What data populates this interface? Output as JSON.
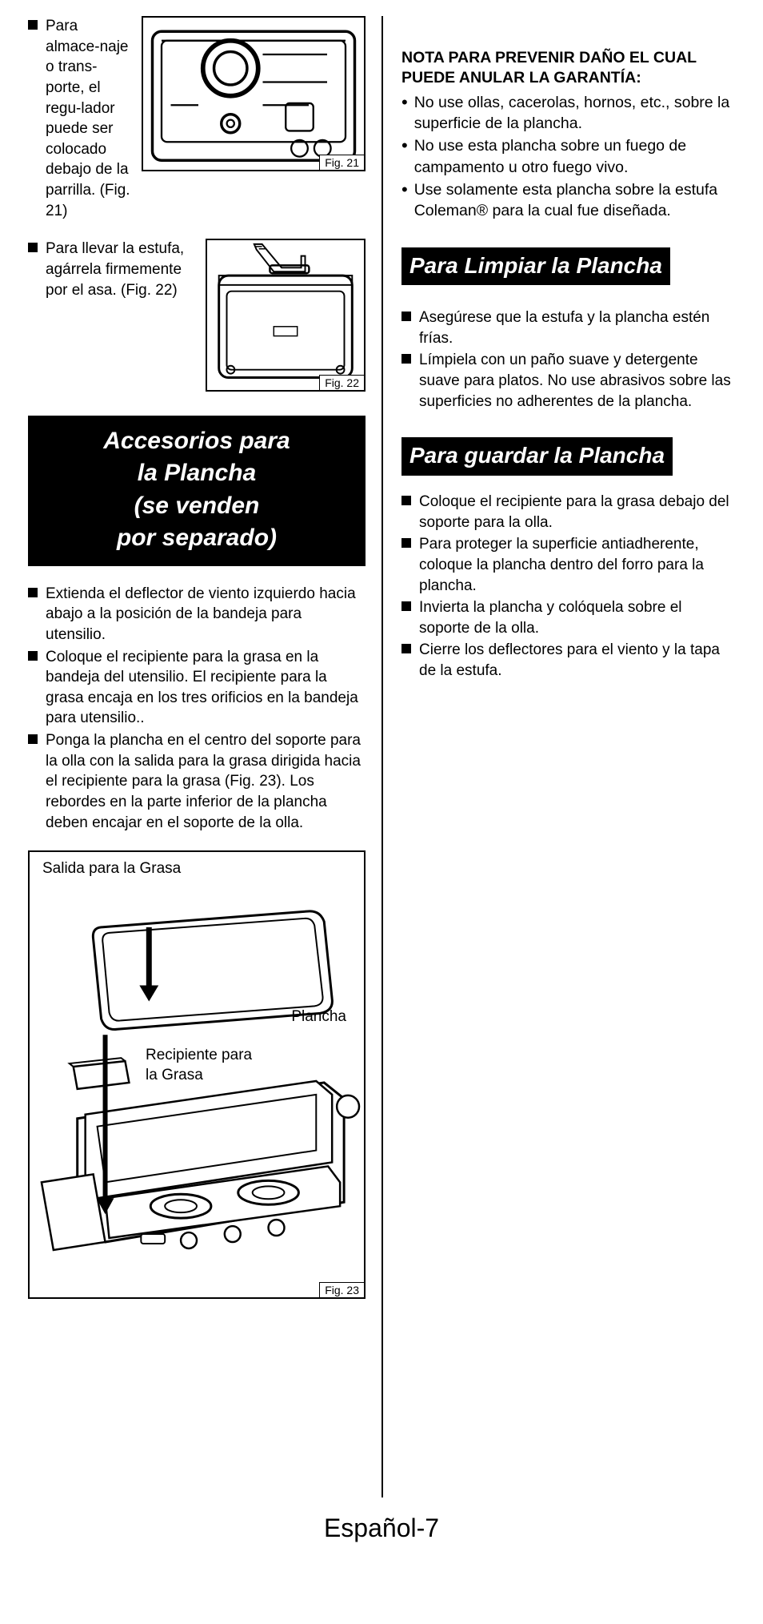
{
  "leftCol": {
    "item1_text": "Para almace-naje o trans-porte, el regu-lador puede ser colocado debajo de la parrilla. (Fig. 21)",
    "fig21_label": "Fig. 21",
    "item2_text": "Para llevar la estufa, agárrela firmemente por el asa. (Fig. 22)",
    "fig22_label": "Fig. 22",
    "heading_accessories": "Accesorios para la Plancha (se venden por separado)",
    "acc_list": [
      "Extienda el deflector de viento izquierdo hacia abajo a la posición de la bandeja para utensilio.",
      "Coloque el recipiente para la grasa en la bandeja del utensilio. El recipiente para la grasa encaja en los tres orificios en la bandeja para utensilio..",
      "Ponga la plancha en el centro del soporte para la olla con la salida para la grasa dirigida hacia el recipiente para la grasa (Fig. 23).  Los rebordes en la parte inferior de la plancha deben encajar en el soporte de la olla."
    ],
    "fig23": {
      "label_a": "Salida para la Grasa",
      "label_b": "Plancha",
      "label_c": "Recipiente para la Grasa",
      "fig_label": "Fig. 23"
    }
  },
  "rightCol": {
    "note_head": "NOTA PARA PREVENIR DAÑO EL CUAL PUEDE ANULAR LA GARANTÍA:",
    "note_bullets": [
      "No use ollas, cacerolas, hornos, etc., sobre la superficie de la plancha.",
      "No use esta plancha sobre un fuego de campamento u otro fuego vivo.",
      "Use solamente esta plancha sobre la estufa Coleman® para la cual fue diseñada."
    ],
    "heading_clean": "Para Limpiar la Plancha",
    "clean_list": [
      "Asegúrese que la estufa y la plancha estén frías.",
      "Límpiela con un paño suave y detergente suave para platos.  No use abrasivos sobre las superficies no adherentes de la plancha."
    ],
    "heading_store": "Para guardar la Plancha",
    "store_list": [
      "Coloque el recipiente para la grasa debajo del soporte para la olla.",
      "Para proteger la superficie antiadherente, coloque la plancha dentro del forro para la plancha.",
      "Invierta la plancha y colóquela sobre el soporte de la olla.",
      "Cierre los deflectores para el viento y la tapa de la estufa."
    ]
  },
  "page_number": "Español-7"
}
